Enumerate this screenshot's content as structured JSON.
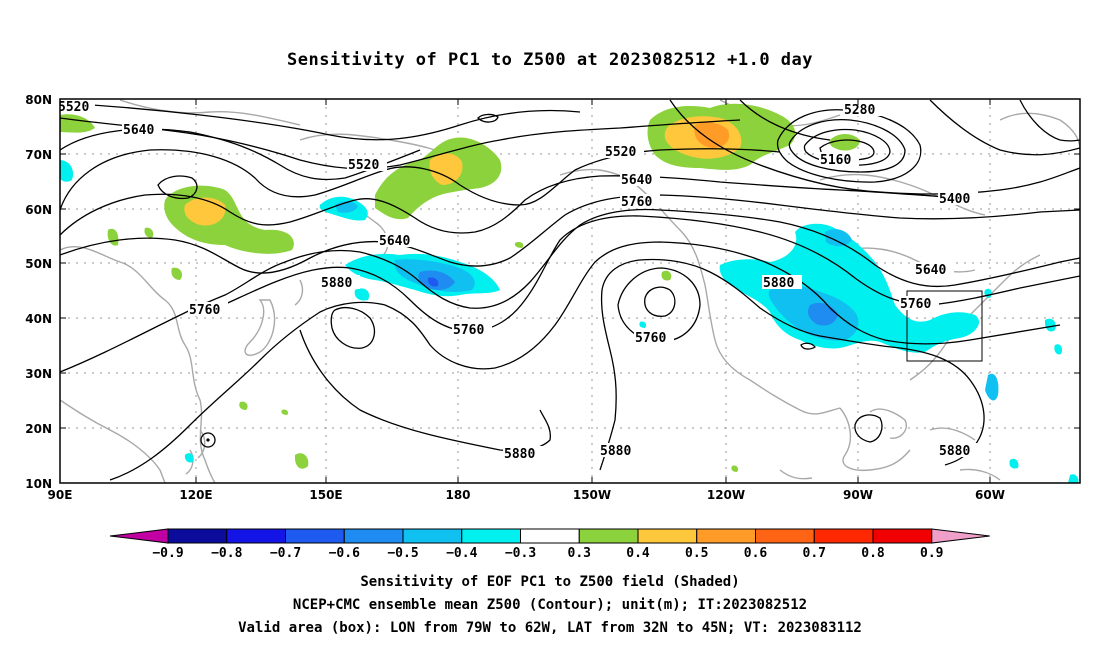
{
  "title": "Sensitivity of PC1 to Z500 at 2023082512 +1.0 day",
  "axes": {
    "lat_ticks": [
      "80N",
      "70N",
      "60N",
      "50N",
      "40N",
      "30N",
      "20N",
      "10N"
    ],
    "lon_ticks": [
      "90E",
      "120E",
      "150E",
      "180",
      "150W",
      "120W",
      "90W",
      "60W"
    ]
  },
  "contour_labels": {
    "c5520a": "5520",
    "c5640a": "5640",
    "c5520b": "5520",
    "c5520c": "5520",
    "c5280": "5280",
    "c5160": "5160",
    "c5400": "5400",
    "c5640b": "5640",
    "c5760b": "5760",
    "c5640c": "5640",
    "c5880a": "5880",
    "c5760a": "5760",
    "c5760c": "5760",
    "c5760d": "5760",
    "c5880b": "5880",
    "c5880c": "5880",
    "c5880d": "5880",
    "c5880e": "5880",
    "c5640d": "5640"
  },
  "colorbar": {
    "labels": [
      "−0.9",
      "−0.8",
      "−0.7",
      "−0.6",
      "−0.5",
      "−0.4",
      "−0.3",
      "0.3",
      "0.4",
      "0.5",
      "0.6",
      "0.7",
      "0.8",
      "0.9"
    ],
    "colors": [
      "#c000a0",
      "#0c0c9c",
      "#1414e6",
      "#1e5af0",
      "#1e8cf0",
      "#10c0f0",
      "#00f0f0",
      "#ffffff",
      "#8cd23c",
      "#ffc83c",
      "#ff9c28",
      "#ff6414",
      "#ff2800",
      "#f00000",
      "#f0a0c8"
    ]
  },
  "caption": {
    "line1": "Sensitivity of EOF PC1 to Z500 field (Shaded)",
    "line2": "NCEP+CMC ensemble mean Z500 (Contour); unit(m); IT:2023082512",
    "line3": "Valid area (box): LON from 79W to 62W, LAT from 32N to 45N; VT: 2023083112"
  }
}
